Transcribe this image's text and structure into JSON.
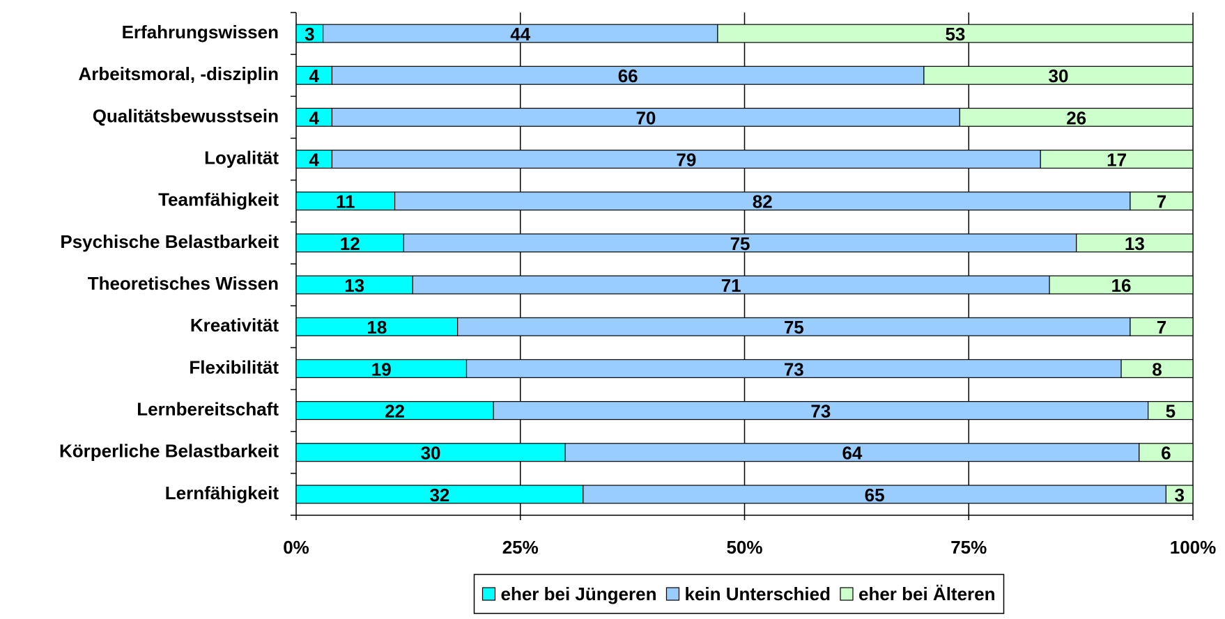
{
  "chart_data": {
    "type": "stacked_barh",
    "categories": [
      "Erfahrungswissen",
      "Arbeitsmoral, -disziplin",
      "Qualitätsbewusstsein",
      "Loyalität",
      "Teamfähigkeit",
      "Psychische Belastbarkeit",
      "Theoretisches Wissen",
      "Kreativität",
      "Flexibilität",
      "Lernbereitschaft",
      "Körperliche Belastbarkeit",
      "Lernfähigkeit"
    ],
    "series": [
      {
        "name": "eher bei Jüngeren",
        "color": "#00ffff",
        "values": [
          3,
          4,
          4,
          4,
          11,
          12,
          13,
          18,
          19,
          22,
          30,
          32
        ]
      },
      {
        "name": "kein Unterschied",
        "color": "#99ccff",
        "values": [
          44,
          66,
          70,
          79,
          82,
          75,
          71,
          75,
          73,
          73,
          64,
          65
        ]
      },
      {
        "name": "eher bei Älteren",
        "color": "#ccffcc",
        "values": [
          53,
          30,
          26,
          17,
          7,
          13,
          16,
          7,
          8,
          5,
          6,
          3
        ]
      }
    ],
    "xlim": [
      0,
      100
    ],
    "xticks": [
      {
        "value": 0,
        "label": "0%"
      },
      {
        "value": 25,
        "label": "25%"
      },
      {
        "value": 50,
        "label": "50%"
      },
      {
        "value": 75,
        "label": "75%"
      },
      {
        "value": 100,
        "label": "100%"
      }
    ],
    "grid": true
  }
}
